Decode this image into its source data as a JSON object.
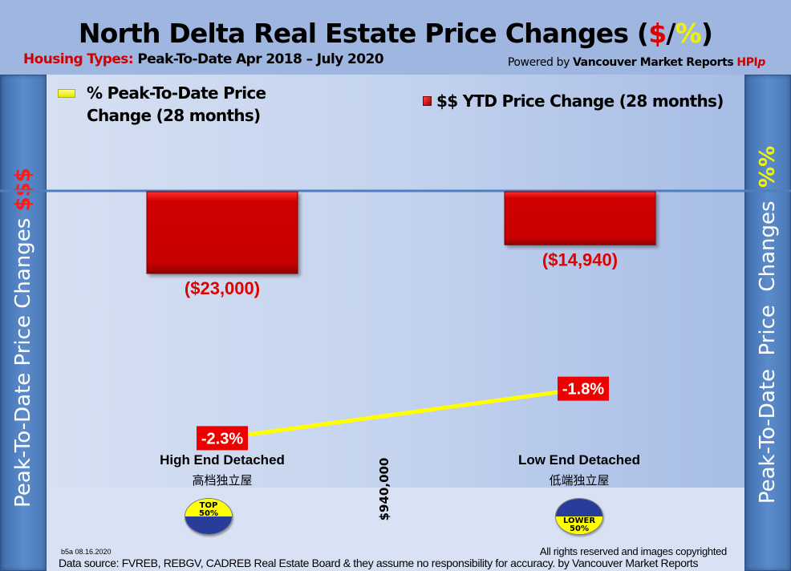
{
  "header": {
    "title_main": "North Delta Real Estate Price Changes (",
    "title_dollar": "$",
    "title_slash": "/",
    "title_percent": "%",
    "title_close": ")",
    "subtitle_label": "Housing Types:",
    "subtitle_period": " Peak-To-Date Apr 2018 – July 2020",
    "powered_prefix": "Powered by ",
    "powered_brand": "Vancouver Market Reports",
    "powered_hpi": "HPI",
    "powered_p": "p"
  },
  "side_labels": {
    "left_text": "Peak-To-Date Price Changes ",
    "left_symbol": "$$$",
    "right_text": "Peak-To-Date  Price  Changes  ",
    "right_symbol": "%%"
  },
  "colors": {
    "bar": "#cc0000",
    "line": "#ffff00",
    "label_red": "#e00000",
    "axis": "#4f7fbf"
  },
  "chart_data": {
    "type": "bar",
    "title": "North Delta Real Estate Price Changes ($/%)",
    "categories": [
      "High End Detached",
      "Low End Detached"
    ],
    "categories_zh": [
      "高档独立屋",
      "低端独立屋"
    ],
    "series": [
      {
        "name": "$$ YTD Price Change (28 months)",
        "type": "bar",
        "axis": "left",
        "values": [
          -23000,
          -14940
        ],
        "labels": [
          "($23,000)",
          "($14,940)"
        ]
      },
      {
        "name": "% Peak-To-Date Price Change (28 months)",
        "type": "line",
        "axis": "right",
        "values": [
          -2.3,
          -1.8
        ],
        "labels": [
          "-2.3%",
          "-1.8%"
        ]
      }
    ],
    "ylim_dollars": [
      -60000,
      15000
    ],
    "ylim_percent": [
      -2.8,
      0.2
    ],
    "ylabel_left": "Peak-To-Date Price Changes $$$",
    "ylabel_right": "Peak-To-Date Price Changes %%",
    "legend": [
      "% Peak-To-Date Price Change (28 months)",
      "$$ YTD Price Change (28 months)"
    ],
    "legend_position": "top",
    "grid": false
  },
  "legend": {
    "line_label": "% Peak-To-Date Price Change (28 months)",
    "bar_label": "$$ YTD Price Change (28 months)"
  },
  "median_label": "$940,000",
  "badges": {
    "top_line1": "TOP",
    "top_line2": "50%",
    "lower_line1": "LOWER",
    "lower_line2": "50%"
  },
  "footer": {
    "stamp": "b5a 08.16.2020",
    "rights": "All rights reserved and  images copyrighted",
    "source": "Data source: FVREB, REBGV, CADREB Real Estate Board & they assume no responsibility for accuracy. by Vancouver Market Reports"
  }
}
